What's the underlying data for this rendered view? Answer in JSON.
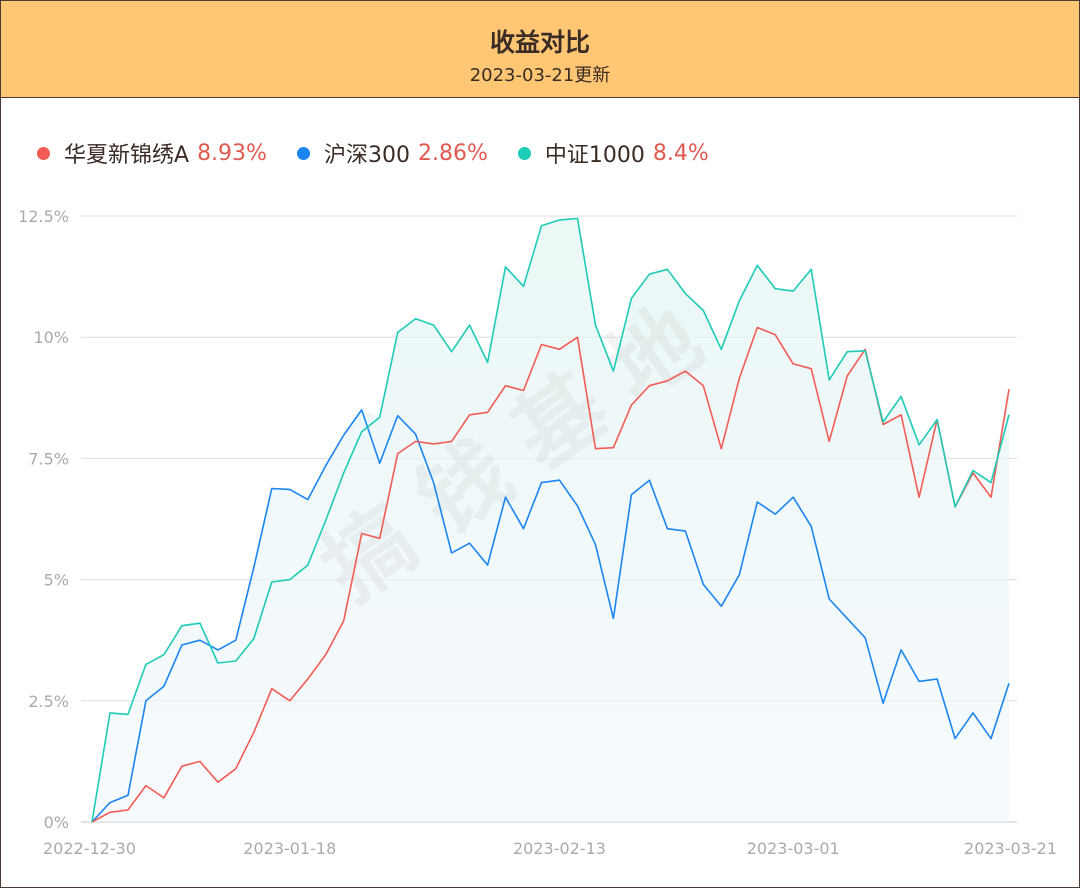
{
  "header": {
    "title": "收益对比",
    "subtitle": "2023-03-21更新"
  },
  "colors": {
    "header_bg": "#ffc774",
    "value_text": "#e05a52"
  },
  "chart_data": {
    "type": "line",
    "ylim": [
      0,
      12.5
    ],
    "yticks": [
      "0%",
      "2.5%",
      "5%",
      "7.5%",
      "10%",
      "12.5%"
    ],
    "ytick_values": [
      0,
      2.5,
      5,
      7.5,
      10,
      12.5
    ],
    "xtick_labels": [
      "2022-12-30",
      "2023-01-18",
      "2023-02-13",
      "2023-03-01",
      "2023-03-21"
    ],
    "xtick_index": [
      0,
      13,
      29,
      44,
      58
    ],
    "grid": true,
    "legend_position": "top-left",
    "watermark": "搞钱基地",
    "series": [
      {
        "name": "华夏新锦绣A",
        "final_value": "8.93%",
        "color": "#f25c54",
        "values": [
          0,
          0.2,
          0.25,
          0.75,
          0.5,
          1.15,
          1.25,
          0.82,
          1.1,
          1.85,
          2.75,
          2.5,
          2.95,
          3.45,
          4.15,
          5.95,
          5.85,
          7.6,
          7.85,
          7.8,
          7.85,
          8.4,
          8.45,
          9.0,
          8.9,
          9.85,
          9.75,
          10.0,
          7.7,
          7.72,
          8.6,
          9.0,
          9.1,
          9.3,
          9.0,
          7.7,
          9.15,
          10.2,
          10.05,
          9.45,
          9.35,
          7.85,
          9.2,
          9.75,
          8.2,
          8.4,
          6.7,
          8.3,
          6.5,
          7.2,
          6.7,
          8.93
        ]
      },
      {
        "name": "沪深300",
        "final_value": "2.86%",
        "color": "#1b86f0",
        "values": [
          0,
          0.4,
          0.55,
          2.5,
          2.8,
          3.65,
          3.75,
          3.55,
          3.75,
          5.25,
          6.88,
          6.86,
          6.65,
          7.35,
          7.98,
          8.5,
          7.4,
          8.38,
          8.0,
          7.0,
          5.55,
          5.75,
          5.3,
          6.7,
          6.05,
          7.0,
          7.05,
          6.52,
          5.72,
          4.2,
          6.75,
          7.05,
          6.05,
          6.0,
          4.9,
          4.45,
          5.1,
          6.6,
          6.35,
          6.7,
          6.1,
          4.6,
          4.2,
          3.8,
          2.45,
          3.55,
          2.9,
          2.95,
          1.72,
          2.25,
          1.72,
          2.86
        ]
      },
      {
        "name": "中证1000",
        "final_value": "8.4%",
        "color": "#1ecbb6",
        "values": [
          0,
          2.25,
          2.22,
          3.25,
          3.45,
          4.05,
          4.1,
          3.28,
          3.32,
          3.78,
          4.95,
          5.0,
          5.3,
          6.22,
          7.2,
          8.05,
          8.35,
          10.1,
          10.38,
          10.25,
          9.7,
          10.25,
          9.48,
          11.45,
          11.05,
          12.3,
          12.42,
          12.45,
          10.25,
          9.3,
          10.8,
          11.3,
          11.4,
          10.9,
          10.55,
          9.75,
          10.75,
          11.48,
          11.0,
          10.95,
          11.4,
          9.12,
          9.7,
          9.72,
          8.25,
          8.78,
          7.78,
          8.3,
          6.5,
          7.25,
          7.0,
          8.4
        ]
      }
    ]
  }
}
